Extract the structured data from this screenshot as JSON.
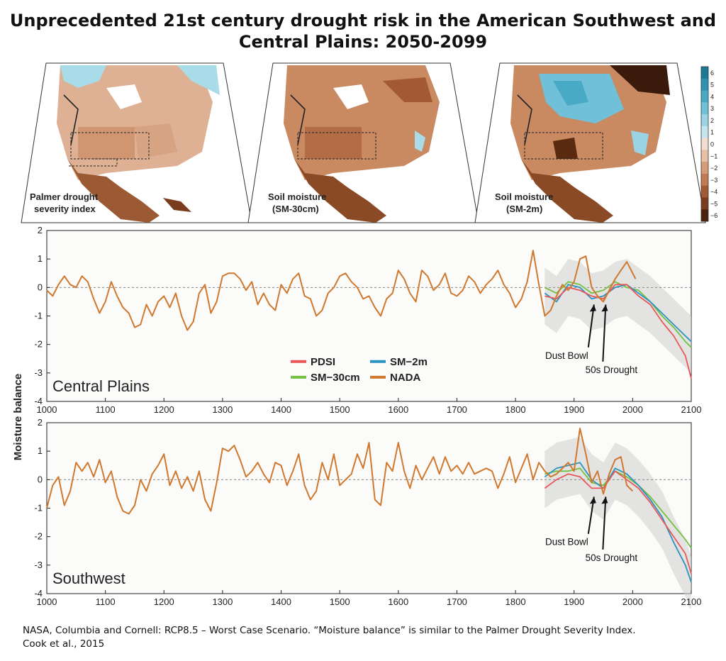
{
  "title": {
    "line1": "Unprecedented 21st century drought risk in the American Southwest and",
    "line2": "Central Plains: 2050-2099"
  },
  "maps": [
    {
      "label_line1": "Palmer drought",
      "label_line2": "severity index"
    },
    {
      "label_line1": "Soil moisture",
      "label_line2": "(SM-30cm)"
    },
    {
      "label_line1": "Soil moisture",
      "label_line2": "(SM-2m)"
    }
  ],
  "colorbar": {
    "ticks": [
      "6",
      "5",
      "4",
      "3",
      "2",
      "1",
      "0",
      "−1",
      "−2",
      "−3",
      "−4",
      "−5",
      "−6"
    ],
    "colors": [
      "#1b7a96",
      "#2d93b0",
      "#49aac6",
      "#6fc0d8",
      "#9bd3e4",
      "#c6e6ef",
      "#f2ddd0",
      "#e7bfa5",
      "#d69c78",
      "#c27a52",
      "#a35a33",
      "#7a3c1c",
      "#4a220d"
    ]
  },
  "chart_data": [
    {
      "type": "line",
      "region_label": "Central Plains",
      "ylabel": "Moisture balance",
      "xlim": [
        1000,
        2100
      ],
      "ylim": [
        -4,
        2
      ],
      "x_ticks": [
        1000,
        1100,
        1200,
        1300,
        1400,
        1500,
        1600,
        1700,
        1800,
        1900,
        2000,
        2100
      ],
      "y_ticks": [
        -4,
        -3,
        -2,
        -1,
        0,
        1,
        2
      ],
      "legend": [
        "PDSI",
        "SM−2m",
        "SM−30cm",
        "NADA"
      ],
      "annotations": [
        {
          "text": "Dust Bowl",
          "x": 1934
        },
        {
          "text": "50s Drought",
          "x": 1954
        }
      ],
      "series": [
        {
          "name": "NADA",
          "color": "#d0782d",
          "x": [
            1000,
            1010,
            1020,
            1030,
            1040,
            1050,
            1060,
            1070,
            1080,
            1090,
            1100,
            1110,
            1120,
            1130,
            1140,
            1150,
            1160,
            1170,
            1180,
            1190,
            1200,
            1210,
            1220,
            1230,
            1240,
            1250,
            1260,
            1270,
            1280,
            1290,
            1300,
            1310,
            1320,
            1330,
            1340,
            1350,
            1360,
            1370,
            1380,
            1390,
            1400,
            1410,
            1420,
            1430,
            1440,
            1450,
            1460,
            1470,
            1480,
            1490,
            1500,
            1510,
            1520,
            1530,
            1540,
            1550,
            1560,
            1570,
            1580,
            1590,
            1600,
            1610,
            1620,
            1630,
            1640,
            1650,
            1660,
            1670,
            1680,
            1690,
            1700,
            1710,
            1720,
            1730,
            1740,
            1750,
            1760,
            1770,
            1780,
            1790,
            1800,
            1810,
            1820,
            1830,
            1840,
            1850,
            1860,
            1870,
            1880,
            1890,
            1900,
            1910,
            1920,
            1930,
            1940,
            1950,
            1960,
            1970,
            1980,
            1990,
            2000,
            2005
          ],
          "y": [
            -0.1,
            -0.3,
            0.1,
            0.4,
            0.1,
            0.0,
            0.4,
            0.2,
            -0.4,
            -0.9,
            -0.5,
            0.2,
            -0.3,
            -0.7,
            -0.9,
            -1.4,
            -1.3,
            -0.6,
            -1.0,
            -0.5,
            -0.3,
            -0.7,
            -0.2,
            -1.0,
            -1.5,
            -1.2,
            -0.2,
            0.1,
            -0.9,
            -0.5,
            0.4,
            0.5,
            0.5,
            0.3,
            -0.1,
            0.2,
            -0.6,
            -0.2,
            -0.6,
            -0.8,
            0.1,
            -0.2,
            0.3,
            0.5,
            -0.3,
            -0.4,
            -1.0,
            -0.8,
            -0.2,
            0.0,
            0.4,
            0.5,
            0.2,
            0.0,
            -0.4,
            -0.3,
            -0.7,
            -1.0,
            -0.4,
            -0.2,
            0.6,
            0.3,
            -0.2,
            -0.5,
            0.6,
            0.4,
            -0.1,
            0.1,
            0.5,
            -0.2,
            -0.3,
            -0.1,
            0.4,
            0.2,
            -0.2,
            0.1,
            0.3,
            0.6,
            0.1,
            -0.2,
            -0.7,
            -0.4,
            0.2,
            1.3,
            0.1,
            -1.0,
            -0.8,
            -0.3,
            0.1,
            -0.1,
            0.2,
            1.0,
            1.1,
            0.0,
            -0.3,
            -0.5,
            -0.1,
            0.3,
            0.6,
            0.9,
            0.5,
            0.3
          ]
        },
        {
          "name": "PDSI",
          "color": "#e8585a",
          "x": [
            1850,
            1870,
            1890,
            1910,
            1930,
            1950,
            1970,
            1990,
            2010,
            2030,
            2050,
            2070,
            2090,
            2100
          ],
          "y": [
            -0.3,
            -0.4,
            0.0,
            -0.1,
            -0.3,
            -0.4,
            0.1,
            0.1,
            -0.3,
            -0.6,
            -1.2,
            -1.7,
            -2.4,
            -3.2
          ]
        },
        {
          "name": "SM−2m",
          "color": "#2b93c0",
          "x": [
            1850,
            1870,
            1890,
            1910,
            1930,
            1950,
            1970,
            1990,
            2010,
            2030,
            2050,
            2070,
            2090,
            2100
          ],
          "y": [
            -0.2,
            -0.5,
            0.1,
            0.0,
            -0.4,
            -0.3,
            0.0,
            0.1,
            -0.2,
            -0.5,
            -0.9,
            -1.3,
            -1.7,
            -1.9
          ]
        },
        {
          "name": "SM−30cm",
          "color": "#74c043",
          "x": [
            1850,
            1870,
            1890,
            1910,
            1930,
            1950,
            1970,
            1990,
            2010,
            2030,
            2050,
            2070,
            2090,
            2100
          ],
          "y": [
            0.0,
            -0.2,
            0.2,
            0.1,
            -0.2,
            -0.1,
            0.2,
            0.0,
            -0.1,
            -0.5,
            -1.0,
            -1.4,
            -1.9,
            -2.1
          ]
        }
      ]
    },
    {
      "type": "line",
      "region_label": "Southwest",
      "ylabel": "Moisture balance",
      "xlim": [
        1000,
        2100
      ],
      "ylim": [
        -4,
        2
      ],
      "x_ticks": [
        1000,
        1100,
        1200,
        1300,
        1400,
        1500,
        1600,
        1700,
        1800,
        1900,
        2000,
        2100
      ],
      "y_ticks": [
        -4,
        -3,
        -2,
        -1,
        0,
        1,
        2
      ],
      "annotations": [
        {
          "text": "Dust Bowl",
          "x": 1934
        },
        {
          "text": "50s Drought",
          "x": 1954
        }
      ],
      "series": [
        {
          "name": "NADA",
          "color": "#d0782d",
          "x": [
            1000,
            1010,
            1020,
            1030,
            1040,
            1050,
            1060,
            1070,
            1080,
            1090,
            1100,
            1110,
            1120,
            1130,
            1140,
            1150,
            1160,
            1170,
            1180,
            1190,
            1200,
            1210,
            1220,
            1230,
            1240,
            1250,
            1260,
            1270,
            1280,
            1290,
            1300,
            1310,
            1320,
            1330,
            1340,
            1350,
            1360,
            1370,
            1380,
            1390,
            1400,
            1410,
            1420,
            1430,
            1440,
            1450,
            1460,
            1470,
            1480,
            1490,
            1500,
            1510,
            1520,
            1530,
            1540,
            1550,
            1560,
            1570,
            1580,
            1590,
            1600,
            1610,
            1620,
            1630,
            1640,
            1650,
            1660,
            1670,
            1680,
            1690,
            1700,
            1710,
            1720,
            1730,
            1740,
            1750,
            1760,
            1770,
            1780,
            1790,
            1800,
            1810,
            1820,
            1830,
            1840,
            1850,
            1860,
            1870,
            1880,
            1890,
            1900,
            1910,
            1920,
            1930,
            1940,
            1950,
            1960,
            1970,
            1980,
            1990,
            2000
          ],
          "y": [
            -1.0,
            -0.2,
            0.1,
            -0.9,
            -0.4,
            0.6,
            0.3,
            0.6,
            0.1,
            0.7,
            -0.1,
            0.3,
            -0.6,
            -1.1,
            -1.2,
            -0.9,
            0.0,
            -0.4,
            0.2,
            0.5,
            0.9,
            -0.2,
            0.3,
            -0.3,
            0.1,
            -0.4,
            0.3,
            -0.7,
            -1.1,
            -0.1,
            1.1,
            1.0,
            1.2,
            0.7,
            0.1,
            0.3,
            0.6,
            0.2,
            -0.1,
            0.6,
            0.5,
            -0.2,
            0.3,
            0.9,
            -0.2,
            -0.7,
            -0.4,
            0.6,
            0.0,
            0.9,
            -0.2,
            0.0,
            0.2,
            0.9,
            0.4,
            1.3,
            -0.7,
            -0.9,
            0.6,
            0.3,
            1.3,
            0.3,
            -0.3,
            0.5,
            0.0,
            0.4,
            0.8,
            0.2,
            0.8,
            0.3,
            0.5,
            0.2,
            0.6,
            0.2,
            0.3,
            0.4,
            0.3,
            -0.3,
            0.2,
            0.8,
            -0.1,
            0.4,
            0.9,
            0.0,
            0.6,
            0.3,
            0.1,
            0.2,
            0.4,
            0.6,
            0.3,
            1.8,
            0.9,
            -0.1,
            0.3,
            -0.5,
            0.2,
            0.7,
            0.8,
            -0.2,
            -0.4
          ]
        },
        {
          "name": "PDSI",
          "color": "#e8585a",
          "x": [
            1850,
            1870,
            1890,
            1910,
            1930,
            1950,
            1970,
            1990,
            2010,
            2030,
            2050,
            2070,
            2090,
            2100
          ],
          "y": [
            -0.3,
            0.0,
            0.2,
            0.1,
            -0.3,
            -0.3,
            0.3,
            0.0,
            -0.3,
            -0.8,
            -1.4,
            -2.0,
            -2.6,
            -3.3
          ]
        },
        {
          "name": "SM−2m",
          "color": "#2b93c0",
          "x": [
            1850,
            1870,
            1890,
            1910,
            1930,
            1950,
            1970,
            1990,
            2010,
            2030,
            2050,
            2070,
            2090,
            2100
          ],
          "y": [
            0.1,
            0.4,
            0.5,
            0.6,
            0.0,
            -0.3,
            0.4,
            0.2,
            -0.2,
            -0.7,
            -1.3,
            -2.2,
            -3.0,
            -3.6
          ]
        },
        {
          "name": "SM−30cm",
          "color": "#74c043",
          "x": [
            1850,
            1870,
            1890,
            1910,
            1930,
            1950,
            1970,
            1990,
            2010,
            2030,
            2050,
            2070,
            2090,
            2100
          ],
          "y": [
            0.2,
            0.3,
            0.3,
            0.4,
            -0.1,
            -0.2,
            0.3,
            0.1,
            -0.2,
            -0.6,
            -1.1,
            -1.6,
            -2.1,
            -2.4
          ]
        }
      ]
    }
  ],
  "footer": {
    "line1": "NASA, Columbia and Cornell: RCP8.5 – Worst Case Scenario. “Moisture balance” is similar to the Palmer Drought Severity Index.",
    "line2": "Cook et al., 2015"
  }
}
